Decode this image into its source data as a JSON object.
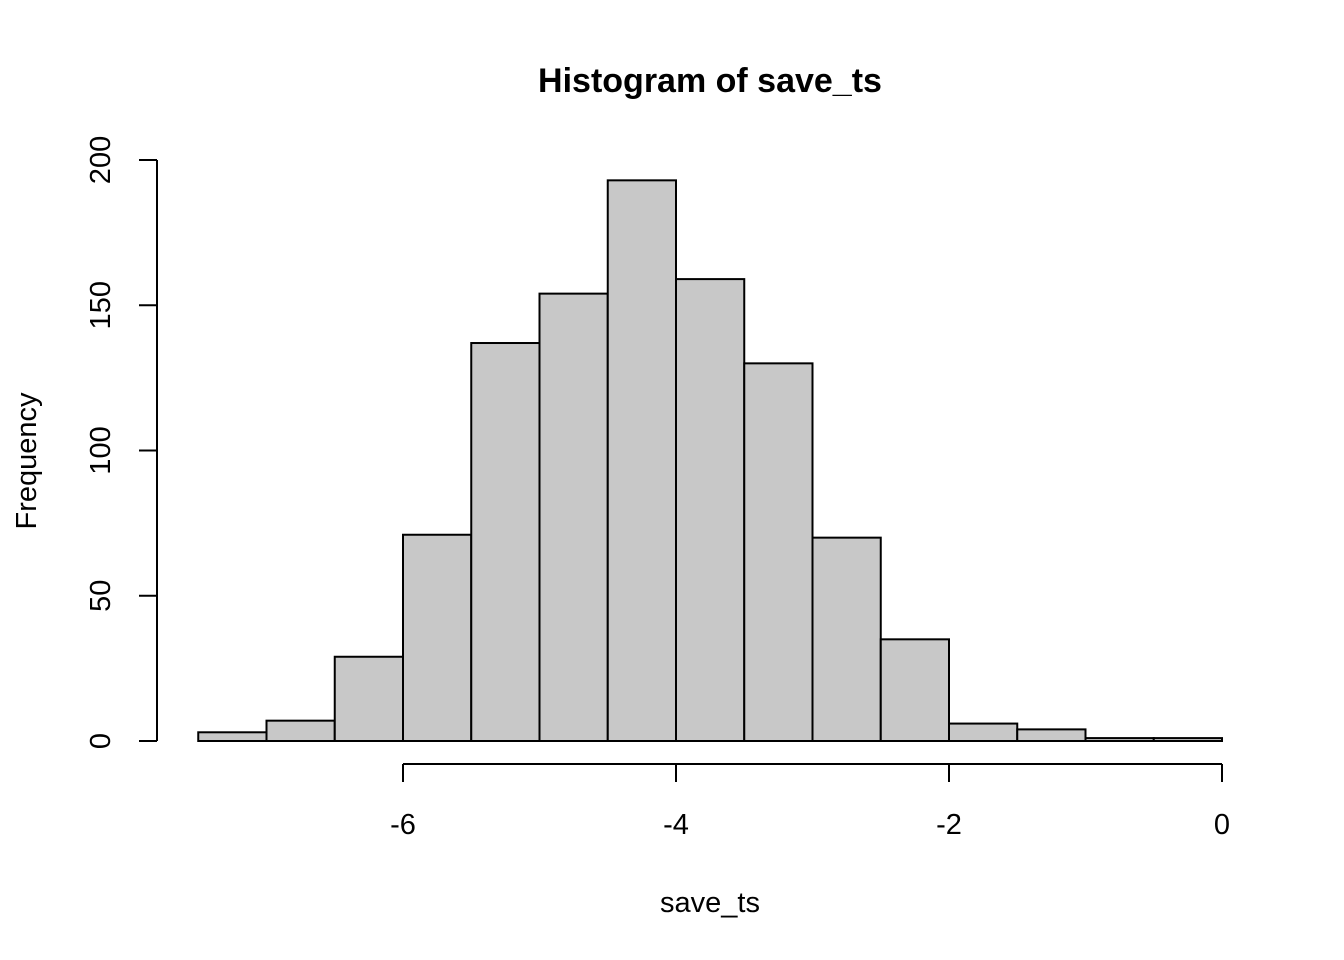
{
  "chart_data": {
    "type": "bar",
    "title": "Histogram of save_ts",
    "xlabel": "save_ts",
    "ylabel": "Frequency",
    "bin_edges": [
      -7.5,
      -7.0,
      -6.5,
      -6.0,
      -5.5,
      -5.0,
      -4.5,
      -4.0,
      -3.5,
      -3.0,
      -2.5,
      -2.0,
      -1.5,
      -1.0,
      -0.5,
      0.0
    ],
    "values": [
      3,
      7,
      29,
      71,
      137,
      154,
      193,
      159,
      130,
      70,
      35,
      6,
      4,
      1,
      1
    ],
    "x_ticks": [
      -6,
      -4,
      -2,
      0
    ],
    "x_tick_labels": [
      "-6",
      "-4",
      "-2",
      "0"
    ],
    "y_ticks": [
      0,
      50,
      100,
      150,
      200
    ],
    "y_tick_labels": [
      "0",
      "50",
      "100",
      "150",
      "200"
    ],
    "xlim": [
      -7.8,
      0.0
    ],
    "ylim": [
      0,
      200
    ],
    "bar_color": "#c8c8c8",
    "grid": false
  }
}
